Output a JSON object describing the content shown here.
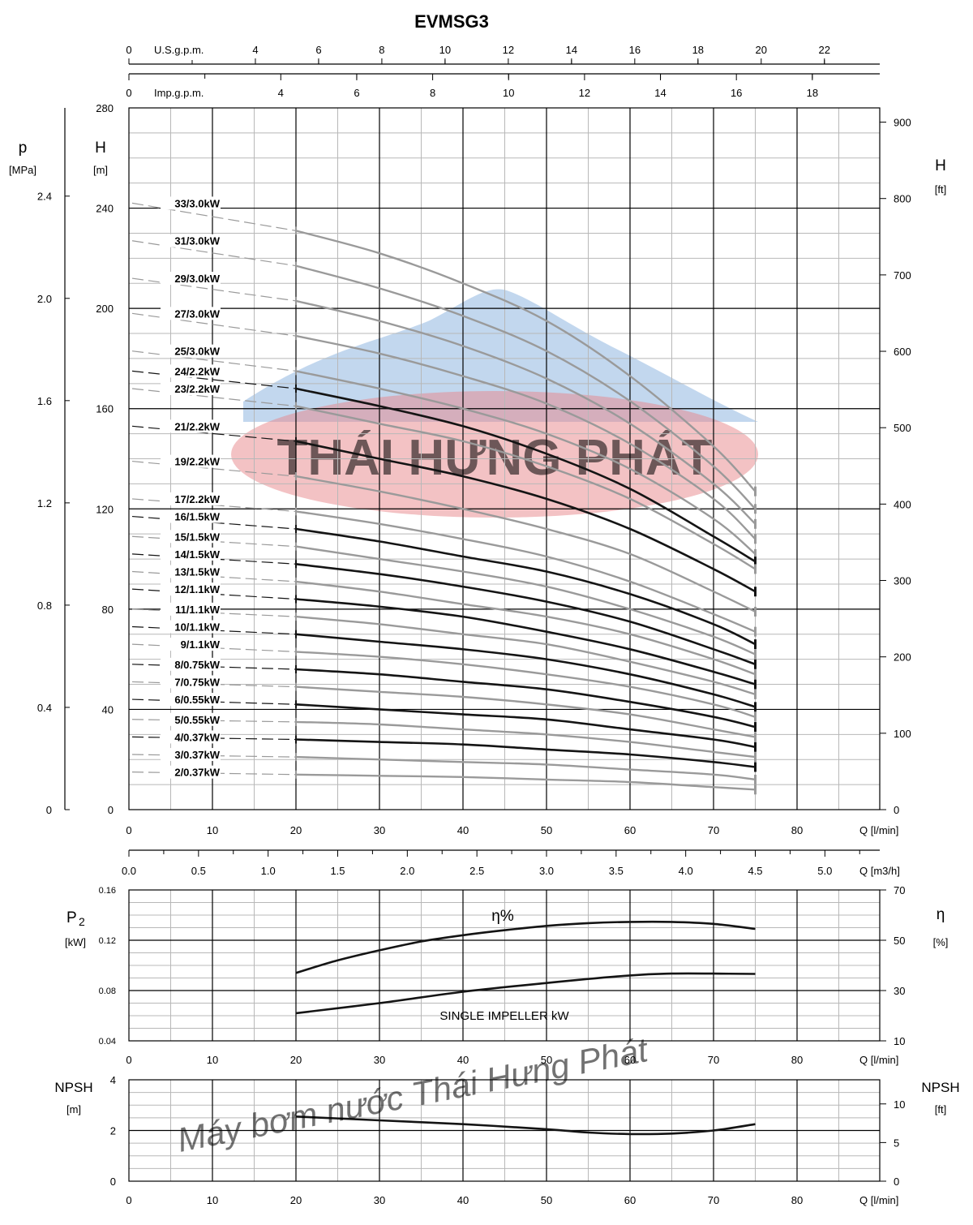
{
  "title": "EVMSG3",
  "colors": {
    "dark_curve": "#141414",
    "light_curve": "#9a9a9a",
    "grid_minor": "#b8b8b8",
    "grid_major": "#000000",
    "watermark_red": "#e8858a",
    "watermark_blue": "#8fb7e0"
  },
  "watermark": {
    "logo_text": "THÁI HƯNG PHÁT",
    "slogan": "Máy bơm nước Thái Hưng Phát"
  },
  "top_axes": {
    "usgpm": {
      "label": "U.S.g.p.m.",
      "ticks": [
        "0",
        "4",
        "6",
        "8",
        "10",
        "12",
        "14",
        "16",
        "18",
        "20",
        "22"
      ]
    },
    "impgpm": {
      "label": "Imp.g.p.m.",
      "ticks": [
        "0",
        "4",
        "6",
        "8",
        "10",
        "12",
        "14",
        "16",
        "18"
      ]
    }
  },
  "chart_data": [
    {
      "type": "line",
      "name": "head-curves",
      "title": "EVMSG3",
      "xlabel": "Q [l/min]",
      "ylabel": "H [m]",
      "left_axis_outer": {
        "label": "p",
        "unit": "[MPa]",
        "ticks": [
          "0",
          "0.4",
          "0.8",
          "1.2",
          "1.6",
          "2.0",
          "2.4"
        ]
      },
      "right_axis": {
        "label": "H",
        "unit": "[ft]",
        "ticks": [
          "0",
          "100",
          "200",
          "300",
          "400",
          "500",
          "600",
          "700",
          "800",
          "900"
        ]
      },
      "x_ticks": [
        "0",
        "10",
        "20",
        "30",
        "40",
        "50",
        "60",
        "70",
        "80"
      ],
      "y_ticks": [
        "0",
        "40",
        "80",
        "120",
        "160",
        "200",
        "240",
        "280"
      ],
      "xlim": [
        0,
        90
      ],
      "ylim": [
        0,
        280
      ],
      "secondary_x_axis": {
        "label": "Q [m3/h]",
        "ticks": [
          "0.0",
          "0.5",
          "1.0",
          "1.5",
          "2.0",
          "2.5",
          "3.0",
          "3.5",
          "4.0",
          "4.5",
          "5.0"
        ]
      },
      "x": [
        20,
        30,
        40,
        50,
        60,
        70,
        75
      ],
      "series": [
        {
          "name": "33/3.0kW",
          "shade": "light",
          "h0": 242,
          "values": [
            231,
            222,
            210,
            195,
            173,
            145,
            127
          ]
        },
        {
          "name": "31/3.0kW",
          "shade": "light",
          "h0": 227,
          "values": [
            217,
            208,
            197,
            183,
            163,
            137,
            120
          ]
        },
        {
          "name": "29/3.0kW",
          "shade": "light",
          "h0": 212,
          "values": [
            203,
            195,
            185,
            172,
            154,
            130,
            114
          ]
        },
        {
          "name": "27/3.0kW",
          "shade": "light",
          "h0": 198,
          "values": [
            189,
            182,
            173,
            162,
            146,
            124,
            108
          ]
        },
        {
          "name": "25/3.0kW",
          "shade": "light",
          "h0": 183,
          "values": [
            175,
            168,
            160,
            150,
            136,
            116,
            102
          ]
        },
        {
          "name": "24/2.2kW",
          "shade": "dark",
          "h0": 175,
          "values": [
            168,
            161,
            153,
            142,
            128,
            109,
            99
          ]
        },
        {
          "name": "23/2.2kW",
          "shade": "light",
          "h0": 168,
          "values": [
            161,
            154,
            147,
            137,
            124,
            106,
            96
          ]
        },
        {
          "name": "21/2.2kW",
          "shade": "dark",
          "h0": 153,
          "values": [
            147,
            140,
            133,
            124,
            112,
            96,
            87
          ]
        },
        {
          "name": "19/2.2kW",
          "shade": "light",
          "h0": 139,
          "values": [
            133,
            127,
            120,
            112,
            102,
            87,
            79
          ]
        },
        {
          "name": "17/2.2kW",
          "shade": "light",
          "h0": 124,
          "values": [
            119,
            114,
            108,
            101,
            91,
            78,
            71
          ]
        },
        {
          "name": "16/1.5kW",
          "shade": "dark",
          "h0": 117,
          "values": [
            112,
            107,
            101,
            95,
            86,
            74,
            66
          ]
        },
        {
          "name": "15/1.5kW",
          "shade": "light",
          "h0": 109,
          "values": [
            105,
            100,
            95,
            89,
            80,
            69,
            62
          ]
        },
        {
          "name": "14/1.5kW",
          "shade": "dark",
          "h0": 102,
          "values": [
            98,
            94,
            89,
            83,
            75,
            64,
            58
          ]
        },
        {
          "name": "13/1.5kW",
          "shade": "light",
          "h0": 95,
          "values": [
            91,
            87,
            82,
            77,
            70,
            60,
            54
          ]
        },
        {
          "name": "12/1.1kW",
          "shade": "dark",
          "h0": 88,
          "values": [
            84,
            81,
            77,
            71,
            64,
            55,
            50
          ]
        },
        {
          "name": "11/1.1kW",
          "shade": "light",
          "h0": 80,
          "values": [
            77,
            74,
            70,
            66,
            59,
            51,
            46
          ]
        },
        {
          "name": "10/1.1kW",
          "shade": "dark",
          "h0": 73,
          "values": [
            70,
            67,
            64,
            60,
            54,
            46,
            41
          ]
        },
        {
          "name": "9/1.1kW",
          "shade": "light",
          "h0": 66,
          "values": [
            63,
            61,
            58,
            54,
            49,
            42,
            37
          ]
        },
        {
          "name": "8/0.75kW",
          "shade": "dark",
          "h0": 58,
          "values": [
            56,
            54,
            51,
            48,
            43,
            37,
            33
          ]
        },
        {
          "name": "7/0.75kW",
          "shade": "light",
          "h0": 51,
          "values": [
            49,
            47,
            45,
            42,
            38,
            32,
            29
          ]
        },
        {
          "name": "6/0.55kW",
          "shade": "dark",
          "h0": 44,
          "values": [
            42,
            40,
            38,
            36,
            32,
            28,
            25
          ]
        },
        {
          "name": "5/0.55kW",
          "shade": "light",
          "h0": 36,
          "values": [
            35,
            34,
            32,
            30,
            27,
            23,
            21
          ]
        },
        {
          "name": "4/0.37kW",
          "shade": "dark",
          "h0": 29,
          "values": [
            28,
            27,
            26,
            24,
            22,
            19,
            17
          ]
        },
        {
          "name": "3/0.37kW",
          "shade": "light",
          "h0": 22,
          "values": [
            21,
            20,
            19,
            18,
            16,
            14,
            12
          ]
        },
        {
          "name": "2/0.37kW",
          "shade": "light",
          "h0": 15,
          "values": [
            14,
            13.5,
            13,
            12,
            11,
            9,
            8
          ]
        }
      ]
    },
    {
      "type": "line",
      "name": "power-efficiency",
      "xlabel": "Q [l/min]",
      "ylabel": "P2 [kW]",
      "left_label": "P",
      "left_label_sub": "2",
      "left_unit": "[kW]",
      "right_label": "η",
      "right_unit": "[%]",
      "x_ticks": [
        "0",
        "10",
        "20",
        "30",
        "40",
        "50",
        "60",
        "70",
        "80"
      ],
      "y_ticks": [
        "0.04",
        "0.08",
        "0.12",
        "0.16"
      ],
      "y2_ticks": [
        "10",
        "30",
        "50",
        "70"
      ],
      "ylim": [
        0.04,
        0.16
      ],
      "y2lim": [
        10,
        70
      ],
      "annotations": {
        "efficiency": "η%",
        "power": "SINGLE IMPELLER kW"
      },
      "series": [
        {
          "name": "η%",
          "axis": "right",
          "x": [
            20,
            25,
            30,
            35,
            40,
            45,
            50,
            55,
            60,
            65,
            70,
            75
          ],
          "values": [
            37,
            42,
            46,
            49.5,
            52,
            54,
            55.7,
            56.8,
            57.3,
            57.3,
            56.5,
            54.5
          ]
        },
        {
          "name": "SINGLE IMPELLER kW",
          "axis": "left",
          "x": [
            20,
            30,
            40,
            50,
            60,
            65,
            70,
            75
          ],
          "values": [
            0.062,
            0.07,
            0.079,
            0.086,
            0.092,
            0.0935,
            0.0935,
            0.0932
          ]
        }
      ]
    },
    {
      "type": "line",
      "name": "npsh",
      "xlabel": "Q [l/min]",
      "ylabel": "NPSH [m]",
      "left_label": "NPSH",
      "left_unit": "[m]",
      "right_label": "NPSH",
      "right_unit": "[ft]",
      "x_ticks": [
        "0",
        "10",
        "20",
        "30",
        "40",
        "50",
        "60",
        "70",
        "80"
      ],
      "y_ticks": [
        "0",
        "2",
        "4"
      ],
      "y2_ticks": [
        "0",
        "5",
        "10"
      ],
      "ylim": [
        0,
        4
      ],
      "series": [
        {
          "name": "NPSH",
          "x": [
            20,
            30,
            40,
            50,
            55,
            60,
            65,
            70,
            75
          ],
          "values": [
            2.55,
            2.4,
            2.25,
            2.05,
            1.92,
            1.86,
            1.88,
            2.0,
            2.25
          ]
        }
      ]
    }
  ]
}
